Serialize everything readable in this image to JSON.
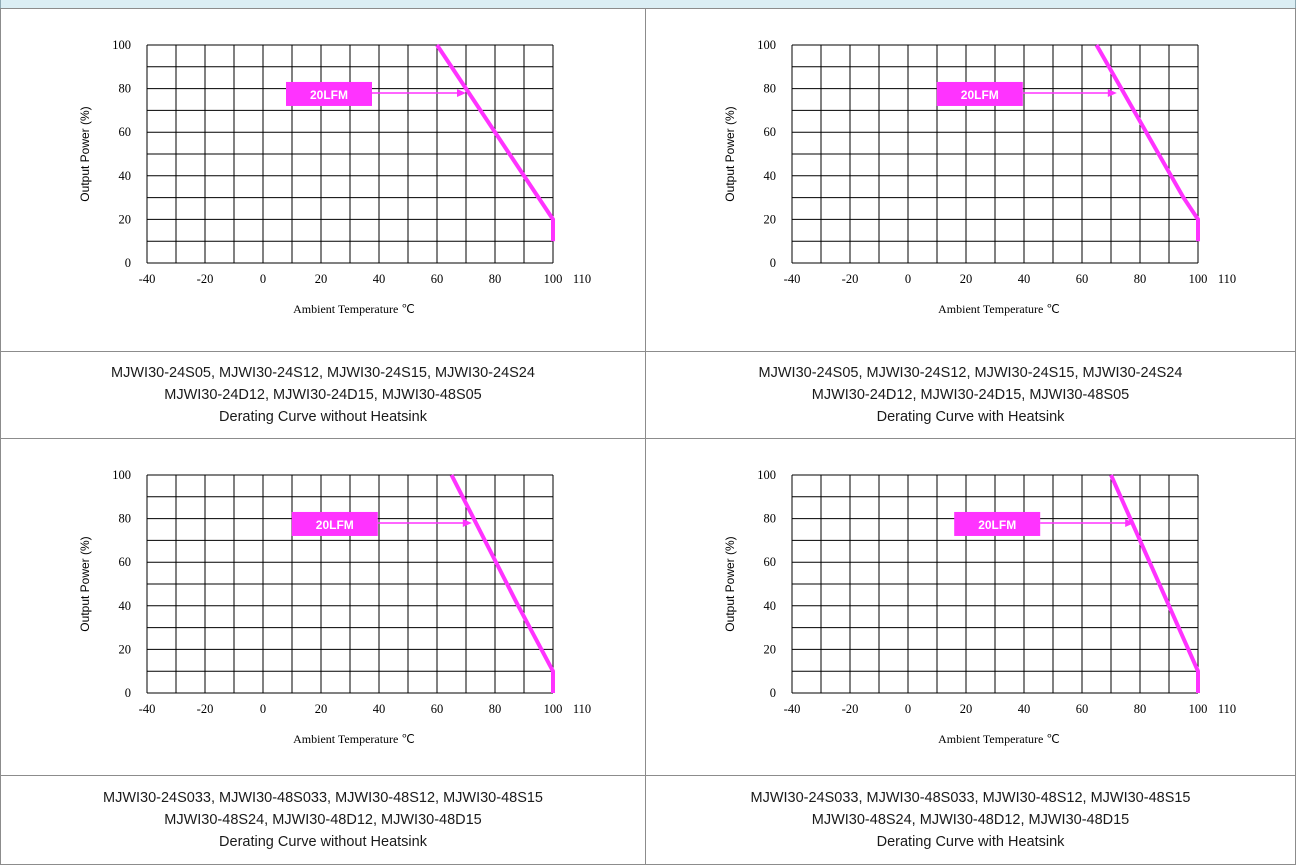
{
  "colors": {
    "curve": "#ff33ff",
    "grid": "#000000",
    "header": "#dbeef4"
  },
  "panels": [
    {
      "chart_data": {
        "type": "line",
        "xlabel": "Ambient Temperature ℃",
        "ylabel": "Output Power (%)",
        "xlim": [
          -40,
          110
        ],
        "ylim": [
          0,
          100
        ],
        "x_ticks": [
          "-40",
          "-20",
          "0",
          "20",
          "40",
          "60",
          "80",
          "100",
          "110"
        ],
        "y_ticks": [
          "0",
          "20",
          "40",
          "60",
          "80",
          "100"
        ],
        "grid": true,
        "series": [
          {
            "x": [
              60,
              100,
              100
            ],
            "y": [
              100,
              20,
              10
            ]
          }
        ],
        "annotation": {
          "label": "20LFM",
          "arrow_to": [
            70,
            78
          ]
        }
      },
      "caption": {
        "line1": "MJWI30-24S05, MJWI30-24S12, MJWI30-24S15, MJWI30-24S24",
        "line2": "MJWI30-24D12, MJWI30-24D15, MJWI30-48S05",
        "line3": "Derating Curve without Heatsink"
      }
    },
    {
      "chart_data": {
        "type": "line",
        "xlabel": "Ambient Temperature ℃",
        "ylabel": "Output Power (%)",
        "xlim": [
          -40,
          110
        ],
        "ylim": [
          0,
          100
        ],
        "x_ticks": [
          "-40",
          "-20",
          "0",
          "20",
          "40",
          "60",
          "80",
          "100",
          "110"
        ],
        "y_ticks": [
          "0",
          "20",
          "40",
          "60",
          "80",
          "100"
        ],
        "grid": true,
        "series": [
          {
            "x": [
              65,
              95,
              100,
              100
            ],
            "y": [
              100,
              30,
              20,
              10
            ]
          }
        ],
        "annotation": {
          "label": "20LFM",
          "arrow_to": [
            72,
            78
          ]
        }
      },
      "caption": {
        "line1": "MJWI30-24S05, MJWI30-24S12, MJWI30-24S15, MJWI30-24S24",
        "line2": "MJWI30-24D12, MJWI30-24D15, MJWI30-48S05",
        "line3": "Derating Curve with Heatsink"
      }
    },
    {
      "chart_data": {
        "type": "line",
        "xlabel": "Ambient Temperature ℃",
        "ylabel": "Output Power (%)",
        "xlim": [
          -40,
          110
        ],
        "ylim": [
          0,
          100
        ],
        "x_ticks": [
          "-40",
          "-20",
          "0",
          "20",
          "40",
          "60",
          "80",
          "100",
          "110"
        ],
        "y_ticks": [
          "0",
          "20",
          "40",
          "60",
          "80",
          "100"
        ],
        "grid": true,
        "series": [
          {
            "x": [
              65,
              88,
              100,
              100
            ],
            "y": [
              100,
              40,
              10,
              0
            ]
          }
        ],
        "annotation": {
          "label": "20LFM",
          "arrow_to": [
            72,
            78
          ]
        }
      },
      "caption": {
        "line1": "MJWI30-24S033, MJWI30-48S033, MJWI30-48S12, MJWI30-48S15",
        "line2": "MJWI30-48S24, MJWI30-48D12, MJWI30-48D15",
        "line3": "Derating Curve without Heatsink"
      }
    },
    {
      "chart_data": {
        "type": "line",
        "xlabel": "Ambient Temperature ℃",
        "ylabel": "Output Power (%)",
        "xlim": [
          -40,
          110
        ],
        "ylim": [
          0,
          100
        ],
        "x_ticks": [
          "-40",
          "-20",
          "0",
          "20",
          "40",
          "60",
          "80",
          "100",
          "110"
        ],
        "y_ticks": [
          "0",
          "20",
          "40",
          "60",
          "80",
          "100"
        ],
        "grid": true,
        "series": [
          {
            "x": [
              70,
              90,
              100,
              100
            ],
            "y": [
              100,
              40,
              10,
              0
            ]
          }
        ],
        "annotation": {
          "label": "20LFM",
          "arrow_to": [
            78,
            78
          ]
        }
      },
      "caption": {
        "line1": "MJWI30-24S033, MJWI30-48S033, MJWI30-48S12, MJWI30-48S15",
        "line2": "MJWI30-48S24, MJWI30-48D12, MJWI30-48D15",
        "line3": "Derating Curve with Heatsink"
      }
    }
  ]
}
